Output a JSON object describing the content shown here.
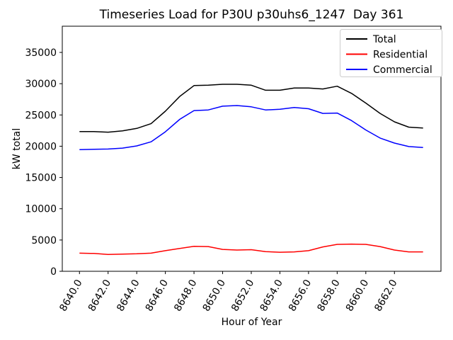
{
  "chart_data": {
    "type": "line",
    "title": "Timeseries Load for P30U p30uhs6_1247  Day 361",
    "xlabel": "Hour of Year",
    "ylabel": "kW total",
    "x": [
      8640,
      8641,
      8642,
      8643,
      8644,
      8645,
      8646,
      8647,
      8648,
      8649,
      8650,
      8651,
      8652,
      8653,
      8654,
      8655,
      8656,
      8657,
      8658,
      8659,
      8660,
      8661,
      8662,
      8663,
      8664
    ],
    "series": [
      {
        "name": "Total",
        "color": "#000000",
        "values": [
          22350,
          22350,
          22250,
          22450,
          22850,
          23600,
          25600,
          27950,
          29700,
          29750,
          29900,
          29900,
          29750,
          28950,
          28950,
          29300,
          29300,
          29150,
          29600,
          28450,
          26900,
          25250,
          23900,
          23050,
          22900
        ]
      },
      {
        "name": "Residential",
        "color": "#ff0000",
        "values": [
          2900,
          2850,
          2700,
          2750,
          2800,
          2900,
          3300,
          3650,
          4000,
          3950,
          3500,
          3400,
          3450,
          3150,
          3050,
          3100,
          3300,
          3900,
          4300,
          4350,
          4300,
          3950,
          3400,
          3100,
          3100
        ]
      },
      {
        "name": "Commercial",
        "color": "#0000ff",
        "values": [
          19450,
          19500,
          19550,
          19700,
          20050,
          20700,
          22300,
          24300,
          25700,
          25800,
          26400,
          26500,
          26300,
          25800,
          25900,
          26200,
          26000,
          25250,
          25300,
          24100,
          22600,
          21300,
          20500,
          19950,
          19800
        ]
      }
    ],
    "xlim": [
      8638.8,
      8665.25
    ],
    "ylim": [
      0,
      39190
    ],
    "yticks": [
      0,
      5000,
      10000,
      15000,
      20000,
      25000,
      30000,
      35000
    ],
    "ytick_labels": [
      "0",
      "5000",
      "10000",
      "15000",
      "20000",
      "25000",
      "30000",
      "35000"
    ],
    "xticks": [
      8640,
      8642,
      8644,
      8646,
      8648,
      8650,
      8652,
      8654,
      8656,
      8658,
      8660,
      8662
    ],
    "xtick_labels": [
      "8640.0",
      "8642.0",
      "8644.0",
      "8646.0",
      "8648.0",
      "8650.0",
      "8652.0",
      "8654.0",
      "8656.0",
      "8658.0",
      "8660.0",
      "8662.0"
    ],
    "xtick_rotation_deg": 60,
    "grid": false,
    "legend_position": "upper right",
    "frame_color": "#000000",
    "legend_edge_color": "#cccccc"
  }
}
